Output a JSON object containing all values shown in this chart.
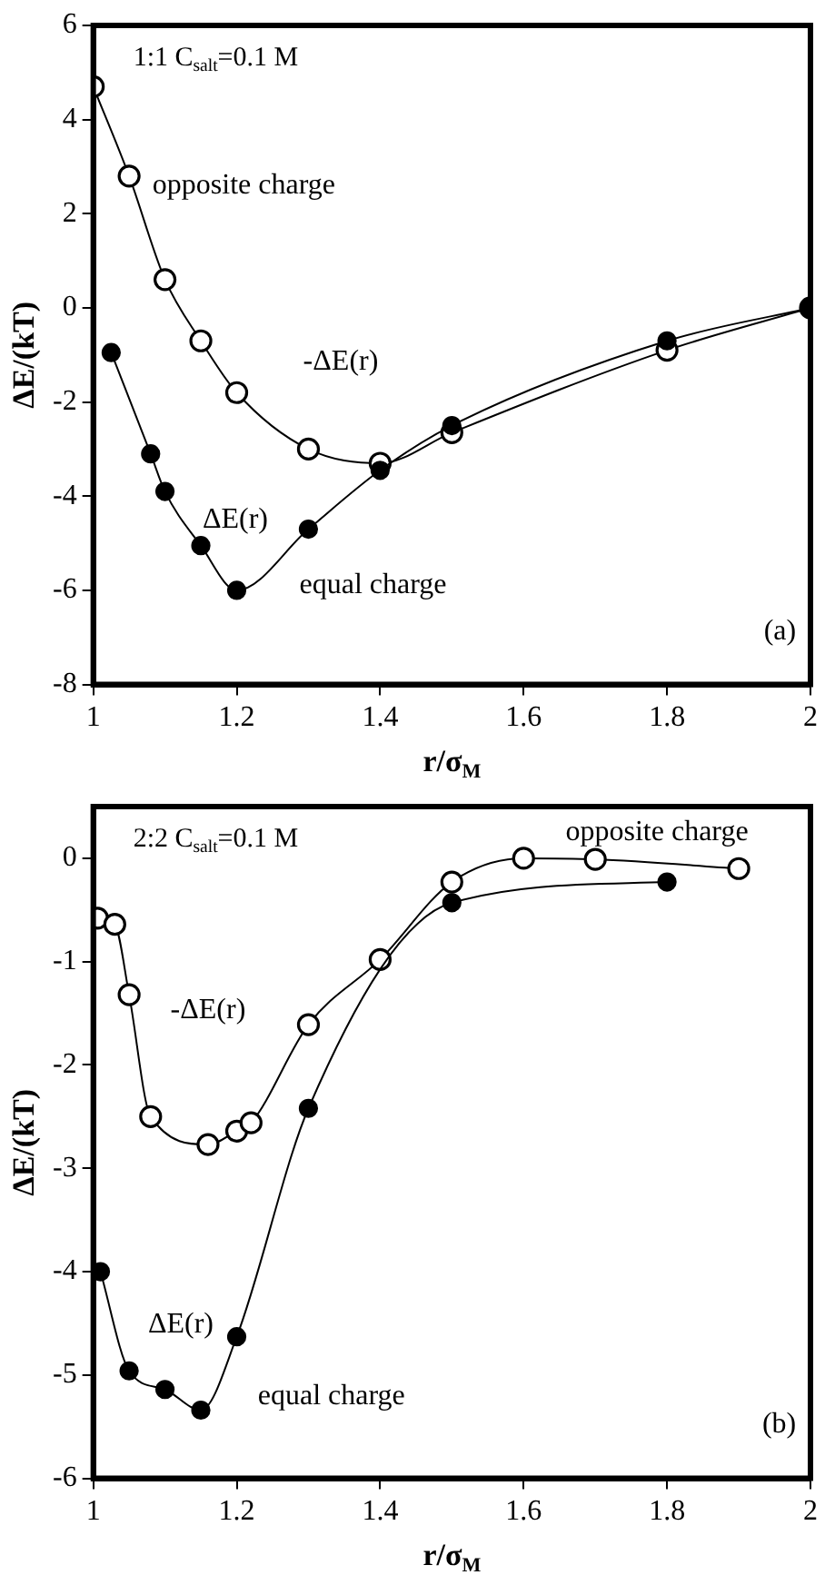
{
  "chart_data": [
    {
      "type": "line",
      "subtitle": "1:1 C$_{salt}$=0.1 M",
      "xlabel": "r/σ$_{M}$",
      "ylabel": "ΔE/(kT)",
      "xlim": [
        1,
        2
      ],
      "xticks": [
        1,
        1.2,
        1.4,
        1.6,
        1.8,
        2
      ],
      "ylim": [
        -8,
        6
      ],
      "yticks": [
        -8,
        -6,
        -4,
        -2,
        0,
        2,
        4,
        6
      ],
      "grid": false,
      "legend": false,
      "series": [
        {
          "color": "#000000",
          "marker": "circle",
          "x": [
            1.0,
            1.05,
            1.1,
            1.15,
            1.2,
            1.3,
            1.4,
            1.5,
            1.8,
            2.0
          ],
          "values": [
            4.7,
            2.8,
            0.6,
            -0.7,
            -1.8,
            -3.0,
            -3.3,
            -2.65,
            -0.9,
            0
          ]
        },
        {
          "color": "#000000",
          "marker": "circle",
          "x": [
            1.025,
            1.08,
            1.1,
            1.15,
            1.2,
            1.3,
            1.4,
            1.5,
            1.8,
            2.0
          ],
          "values": [
            -0.95,
            -3.1,
            -3.9,
            -5.05,
            -6.0,
            -4.7,
            -3.45,
            -2.5,
            -0.7,
            0
          ]
        }
      ],
      "annotations": [
        "opposite charge",
        "-ΔE(r)",
        "ΔE(r)",
        "equal charge",
        "(a)"
      ]
    },
    {
      "type": "line",
      "subtitle": "2:2 C$_{salt}$=0.1 M",
      "xlabel": "r/σ$_{M}$",
      "ylabel": "ΔE/(kT)",
      "xlim": [
        1,
        2
      ],
      "xticks": [
        1,
        1.2,
        1.4,
        1.6,
        1.8,
        2
      ],
      "ylim": [
        -6,
        0.5
      ],
      "yticks": [
        -6,
        -5,
        -4,
        -3,
        -2,
        -1,
        0
      ],
      "grid": false,
      "legend": false,
      "series": [
        {
          "color": "#000000",
          "marker": "circle",
          "x": [
            1.006,
            1.03,
            1.05,
            1.08,
            1.16,
            1.2,
            1.22,
            1.3,
            1.4,
            1.5,
            1.6,
            1.7,
            1.9
          ],
          "values": [
            -0.58,
            -0.64,
            -1.32,
            -2.5,
            -2.77,
            -2.64,
            -2.56,
            -1.61,
            -0.98,
            -0.23,
            0,
            -0.01,
            -0.1
          ]
        },
        {
          "color": "#000000",
          "marker": "circle",
          "x": [
            1.01,
            1.05,
            1.1,
            1.15,
            1.2,
            1.3,
            1.5,
            1.8
          ],
          "values": [
            -4.0,
            -4.96,
            -5.14,
            -5.34,
            -4.63,
            -2.42,
            -0.43,
            -0.23
          ]
        }
      ],
      "annotations": [
        "opposite charge",
        "-ΔE(r)",
        "ΔE(r)",
        "equal charge",
        "(b)"
      ]
    }
  ]
}
